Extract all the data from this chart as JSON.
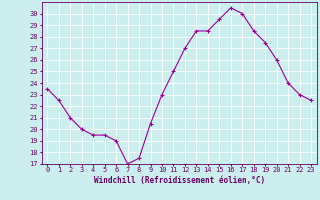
{
  "x": [
    0,
    1,
    2,
    3,
    4,
    5,
    6,
    7,
    8,
    9,
    10,
    11,
    12,
    13,
    14,
    15,
    16,
    17,
    18,
    19,
    20,
    21,
    22,
    23
  ],
  "y": [
    23.5,
    22.5,
    21.0,
    20.0,
    19.5,
    19.5,
    19.0,
    17.0,
    17.5,
    20.5,
    23.0,
    25.0,
    27.0,
    28.5,
    28.5,
    29.5,
    30.5,
    30.0,
    28.5,
    27.5,
    26.0,
    24.0,
    23.0,
    22.5
  ],
  "line_color": "#990099",
  "marker": "+",
  "marker_size": 3,
  "bg_color": "#cceeee",
  "grid_color": "#ffffff",
  "xlabel": "Windchill (Refroidissement éolien,°C)",
  "xlabel_color": "#660066",
  "tick_color": "#660066",
  "xlim": [
    -0.5,
    23.5
  ],
  "ylim": [
    17,
    31
  ],
  "yticks": [
    17,
    18,
    19,
    20,
    21,
    22,
    23,
    24,
    25,
    26,
    27,
    28,
    29,
    30
  ],
  "xticks": [
    0,
    1,
    2,
    3,
    4,
    5,
    6,
    7,
    8,
    9,
    10,
    11,
    12,
    13,
    14,
    15,
    16,
    17,
    18,
    19,
    20,
    21,
    22,
    23
  ],
  "label_fontsize": 5.5,
  "tick_fontsize": 5.0
}
